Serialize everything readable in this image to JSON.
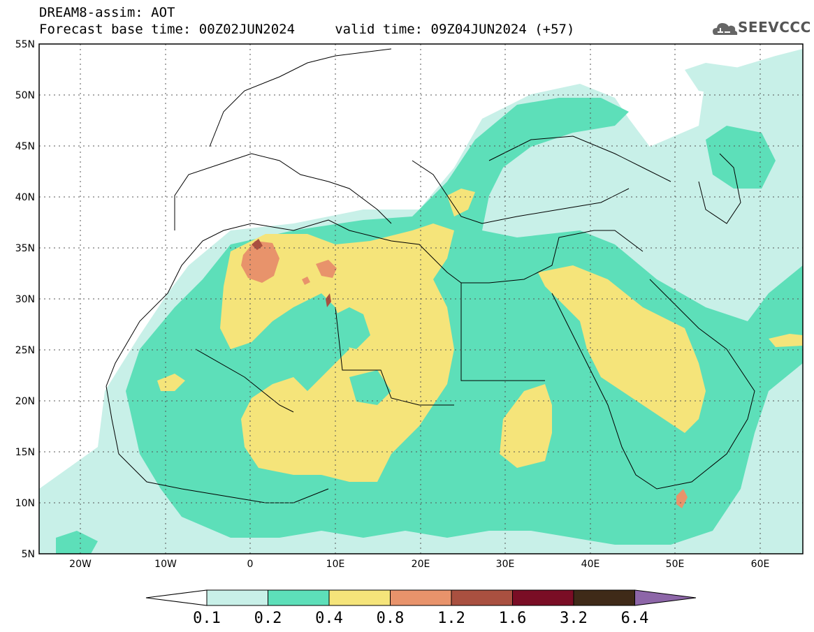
{
  "header": {
    "line1": "DREAM8-assim: AOT",
    "line2": "Forecast base time: 00Z02JUN2024     valid time: 09Z04JUN2024 (+57)"
  },
  "logo": {
    "text": "SEEVCCC",
    "icon": "cloud-icon"
  },
  "map": {
    "lon_range": [
      -25,
      65
    ],
    "lat_range": [
      5,
      55
    ],
    "lon_ticks": [
      "20W",
      "10W",
      "0",
      "10E",
      "20E",
      "30E",
      "40E",
      "50E",
      "60E"
    ],
    "lat_ticks": [
      "55N",
      "50N",
      "45N",
      "40N",
      "35N",
      "30N",
      "25N",
      "20N",
      "15N",
      "10N",
      "5N"
    ],
    "grid": true
  },
  "colorbar": {
    "labels": [
      "0.1",
      "0.2",
      "0.4",
      "0.8",
      "1.2",
      "1.6",
      "3.2",
      "6.4"
    ],
    "colors": [
      "#c8f0e8",
      "#5ddfb9",
      "#f5e47a",
      "#e8936b",
      "#a95040",
      "#7a0d25",
      "#3f2a18"
    ],
    "over_color": "#8d66a8",
    "under_color": "#ffffff"
  }
}
